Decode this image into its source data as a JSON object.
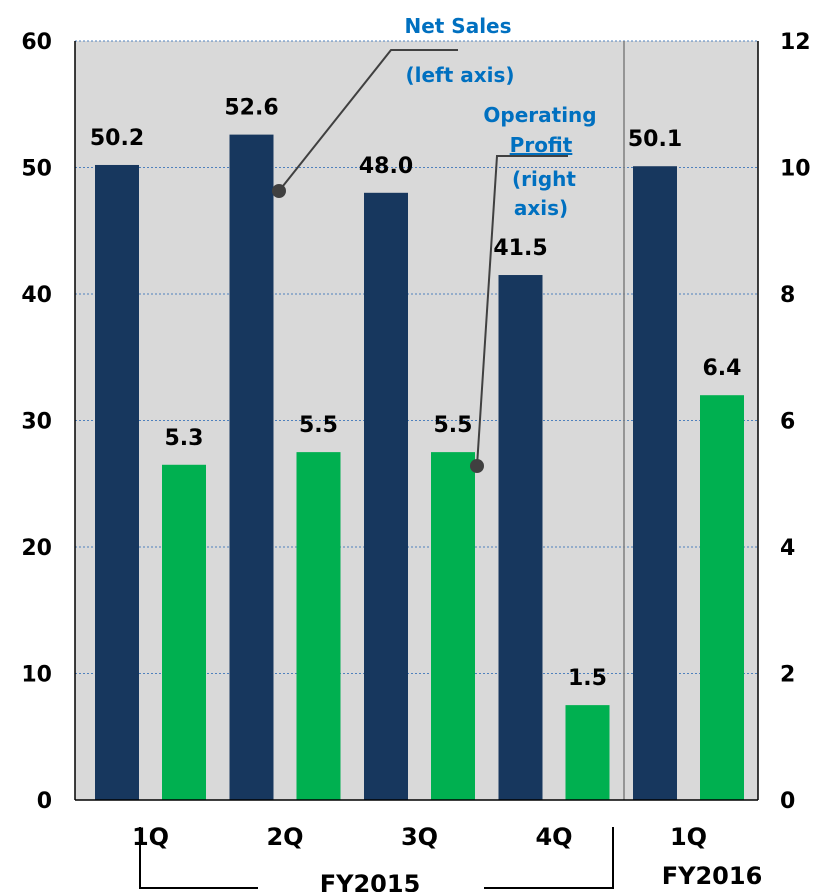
{
  "colors": {
    "plot_bg": "#d9d9d9",
    "net_sales": "#17375e",
    "operating_profit": "#00b050",
    "annotation": "#0070c0",
    "grid": "#4f81bd"
  },
  "chart_data": {
    "type": "bar",
    "categories": [
      "1Q",
      "2Q",
      "3Q",
      "4Q",
      "1Q"
    ],
    "groups": [
      {
        "label": "FY2015",
        "categories": [
          "1Q",
          "2Q",
          "3Q",
          "4Q"
        ]
      },
      {
        "label": "FY2016",
        "categories": [
          "1Q"
        ]
      }
    ],
    "series": [
      {
        "name": "Net Sales",
        "axis": "left",
        "values": [
          50.2,
          52.6,
          48.0,
          41.5,
          50.1
        ],
        "labels": [
          "50.2",
          "52.6",
          "48.0",
          "41.5",
          "50.1"
        ]
      },
      {
        "name": "Operating Profit",
        "axis": "right",
        "values": [
          5.3,
          5.5,
          5.5,
          1.5,
          6.4
        ],
        "labels": [
          "5.3",
          "5.5",
          "5.5",
          "1.5",
          "6.4"
        ]
      }
    ],
    "left_axis": {
      "range": [
        0,
        60
      ],
      "ticks": [
        "0",
        "10",
        "20",
        "30",
        "40",
        "50",
        "60"
      ]
    },
    "right_axis": {
      "range": [
        0,
        12
      ],
      "ticks": [
        "0",
        "2",
        "4",
        "6",
        "8",
        "10",
        "12"
      ]
    },
    "grid": true,
    "annotations": [
      {
        "lines": [
          "Net Sales",
          "(left axis)"
        ]
      },
      {
        "lines": [
          "Operating",
          "Profit",
          "(right",
          "axis)"
        ]
      }
    ]
  }
}
